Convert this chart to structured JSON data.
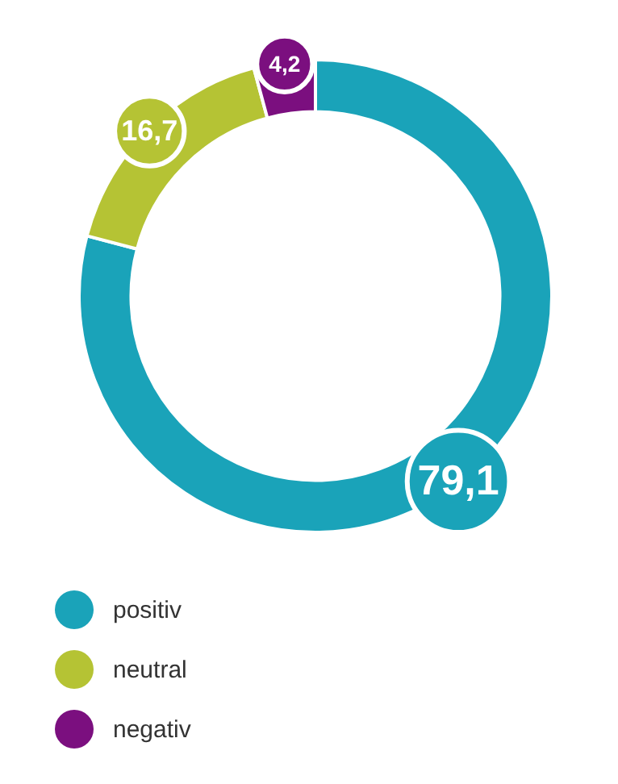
{
  "chart_data": {
    "type": "donut",
    "categories": [
      "positiv",
      "neutral",
      "negativ"
    ],
    "values": [
      79.1,
      16.7,
      4.2
    ],
    "colors": [
      "#1aa3b9",
      "#b5c334",
      "#7b0f7f"
    ],
    "value_labels": [
      "79,1",
      "16,7",
      "4,2"
    ],
    "legend": "bottom left"
  }
}
